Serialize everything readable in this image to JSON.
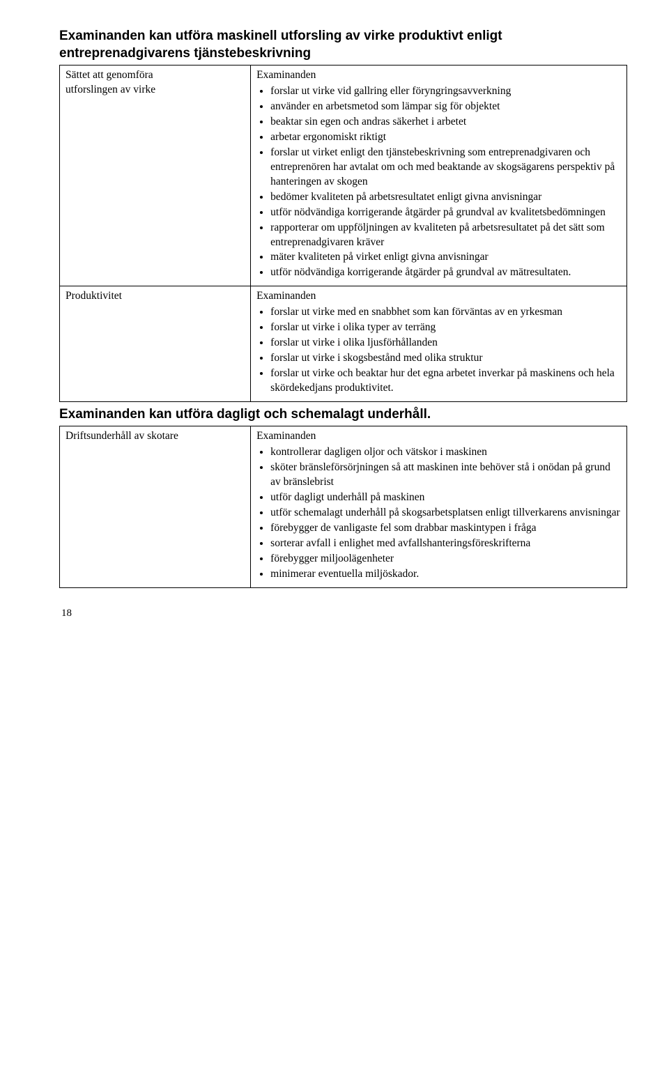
{
  "heading1_l1": "Examinanden kan utföra maskinell utforsling av virke produktivt enligt",
  "heading1_l2": "entreprenadgivarens tjänstebeskrivning",
  "heading2": "Examinanden kan utföra dagligt och schemalagt underhåll.",
  "intro": "Examinanden",
  "row1": {
    "left_l1": "Sättet att genomföra",
    "left_l2": "utforslingen av virke",
    "b1": "forslar ut virke vid gallring eller föryngringsavverkning",
    "b2": "använder en arbetsmetod som lämpar sig för objektet",
    "b3": "beaktar sin egen och andras säkerhet i arbetet",
    "b4": "arbetar ergonomiskt riktigt",
    "b5": "forslar ut virket enligt den tjänstebeskrivning som entreprenadgivaren och entreprenören har avtalat om och med beaktande av skogsägarens perspektiv på hanteringen av skogen",
    "b6": "bedömer kvaliteten på arbetsresultatet enligt givna anvisningar",
    "b7": "utför nödvändiga korrigerande åtgärder på grundval av kvalitetsbedömningen",
    "b8": "rapporterar om uppföljningen av kvaliteten på arbetsresultatet på det sätt som entreprenadgivaren kräver",
    "b9": "mäter kvaliteten på virket enligt givna anvisningar",
    "b10": "utför nödvändiga korrigerande åtgärder på grundval av mätresultaten."
  },
  "row2": {
    "left": "Produktivitet",
    "b1": "forslar ut virke med en snabbhet som kan förväntas av en yrkesman",
    "b2": "forslar ut virke i olika typer av terräng",
    "b3": "forslar ut virke i olika ljusförhållanden",
    "b4": "forslar ut virke i skogsbestånd med olika struktur",
    "b5": "forslar ut virke och beaktar hur det egna arbetet inverkar på maskinens och hela skördekedjans produktivitet."
  },
  "row3": {
    "left": "Driftsunderhåll av skotare",
    "b1": "kontrollerar dagligen oljor och vätskor i maskinen",
    "b2": "sköter bränsleförsörjningen så att maskinen inte behöver stå i onödan på grund av bränslebrist",
    "b3": "utför dagligt underhåll på maskinen",
    "b4": "utför schemalagt underhåll på skogsarbetsplatsen enligt tillverkarens anvisningar",
    "b5": "förebygger de vanligaste fel som drabbar maskintypen i fråga",
    "b6": "sorterar avfall i enlighet med avfallshanteringsföreskrifterna",
    "b7": "förebygger miljoolägenheter",
    "b8": "minimerar eventuella miljöskador."
  },
  "pageNumber": "18"
}
